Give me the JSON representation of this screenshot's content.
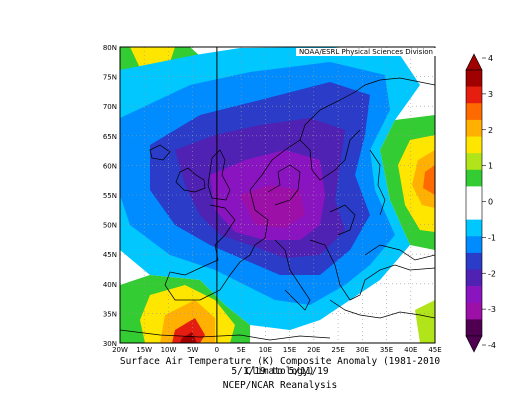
{
  "map": {
    "credit": "NOAA/ESRL Physical Sciences Division",
    "title_line1": "Surface Air Temperature (K) Composite Anomaly (1981-2010 Climatology)",
    "title_line2": "5/1/19  to 5/11/19",
    "title_line3": "NCEP/NCAR Reanalysis",
    "lat_labels": [
      "80N",
      "75N",
      "70N",
      "65N",
      "60N",
      "55N",
      "50N",
      "45N",
      "40N",
      "35N",
      "30N"
    ],
    "lon_labels": [
      "20W",
      "15W",
      "10W",
      "5W",
      "0",
      "5E",
      "10E",
      "15E",
      "20E",
      "25E",
      "30E",
      "35E",
      "40E",
      "45E"
    ]
  },
  "colorbar": {
    "ticks": [
      "4",
      "3",
      "2",
      "1",
      "0",
      "-1",
      "-2",
      "-3",
      "-4"
    ],
    "colors": [
      "#a00000",
      "#e61e10",
      "#ff6a00",
      "#ffb000",
      "#ffe600",
      "#b2e41a",
      "#33cc33",
      "#ffffff",
      "#ffffff",
      "#00c8ff",
      "#008cff",
      "#2a3cc8",
      "#5022b4",
      "#8a14c0",
      "#9c10a8",
      "#500050"
    ]
  }
}
